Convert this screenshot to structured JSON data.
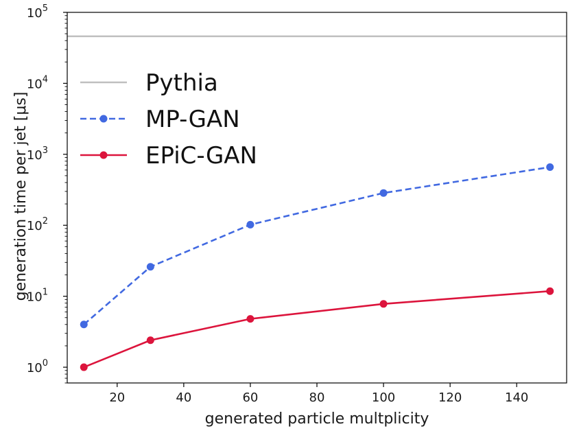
{
  "chart_data": {
    "type": "line",
    "xlabel": "generated particle multplicity",
    "ylabel": "generation time per jet [μs]",
    "xlim": [
      5,
      155
    ],
    "ylim": [
      0.6,
      100000
    ],
    "yscale": "log",
    "x_ticks": [
      20,
      40,
      60,
      80,
      100,
      120,
      140
    ],
    "y_tick_exponents": [
      0,
      1,
      2,
      3,
      4,
      5
    ],
    "y_tick_base": "10",
    "grid": false,
    "legend_position": "upper-left",
    "series": [
      {
        "name": "Pythia",
        "style": "solid",
        "markers": false,
        "color": "#bfbfbf",
        "constant_y": 46000
      },
      {
        "name": "MP-GAN",
        "style": "dashed",
        "markers": true,
        "color": "#4169e1",
        "x": [
          10,
          30,
          60,
          100,
          150
        ],
        "y": [
          4,
          26,
          102,
          285,
          660
        ]
      },
      {
        "name": "EPiC-GAN",
        "style": "solid",
        "markers": true,
        "color": "#dc143c",
        "x": [
          10,
          30,
          60,
          100,
          150
        ],
        "y": [
          1.0,
          2.4,
          4.8,
          7.8,
          11.8
        ]
      }
    ]
  }
}
